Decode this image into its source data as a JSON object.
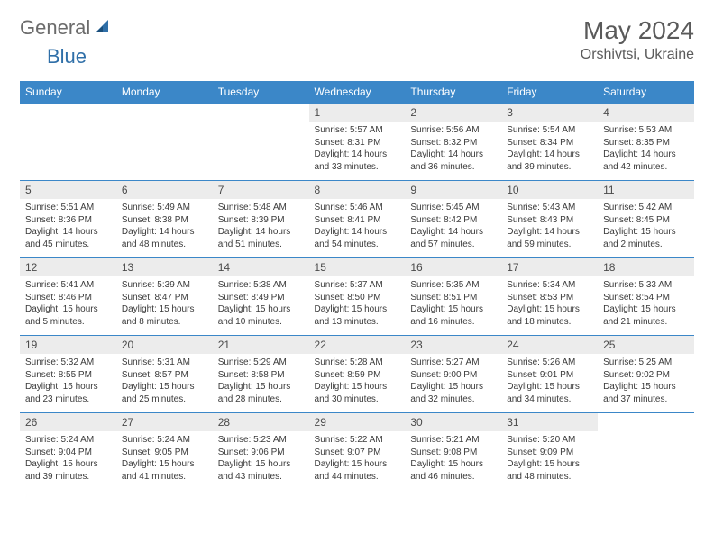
{
  "logo": {
    "part1": "General",
    "part2": "Blue"
  },
  "title": "May 2024",
  "location": "Orshivtsi, Ukraine",
  "colors": {
    "header_bg": "#3b87c8",
    "header_text": "#ffffff",
    "daynum_bg": "#ececec",
    "border": "#3b87c8",
    "body_text": "#3a3a3a",
    "logo_gray": "#6b6b6b",
    "logo_blue": "#2f6fa8"
  },
  "day_names": [
    "Sunday",
    "Monday",
    "Tuesday",
    "Wednesday",
    "Thursday",
    "Friday",
    "Saturday"
  ],
  "weeks": [
    [
      {
        "day": "",
        "text": ""
      },
      {
        "day": "",
        "text": ""
      },
      {
        "day": "",
        "text": ""
      },
      {
        "day": "1",
        "text": "Sunrise: 5:57 AM\nSunset: 8:31 PM\nDaylight: 14 hours and 33 minutes."
      },
      {
        "day": "2",
        "text": "Sunrise: 5:56 AM\nSunset: 8:32 PM\nDaylight: 14 hours and 36 minutes."
      },
      {
        "day": "3",
        "text": "Sunrise: 5:54 AM\nSunset: 8:34 PM\nDaylight: 14 hours and 39 minutes."
      },
      {
        "day": "4",
        "text": "Sunrise: 5:53 AM\nSunset: 8:35 PM\nDaylight: 14 hours and 42 minutes."
      }
    ],
    [
      {
        "day": "5",
        "text": "Sunrise: 5:51 AM\nSunset: 8:36 PM\nDaylight: 14 hours and 45 minutes."
      },
      {
        "day": "6",
        "text": "Sunrise: 5:49 AM\nSunset: 8:38 PM\nDaylight: 14 hours and 48 minutes."
      },
      {
        "day": "7",
        "text": "Sunrise: 5:48 AM\nSunset: 8:39 PM\nDaylight: 14 hours and 51 minutes."
      },
      {
        "day": "8",
        "text": "Sunrise: 5:46 AM\nSunset: 8:41 PM\nDaylight: 14 hours and 54 minutes."
      },
      {
        "day": "9",
        "text": "Sunrise: 5:45 AM\nSunset: 8:42 PM\nDaylight: 14 hours and 57 minutes."
      },
      {
        "day": "10",
        "text": "Sunrise: 5:43 AM\nSunset: 8:43 PM\nDaylight: 14 hours and 59 minutes."
      },
      {
        "day": "11",
        "text": "Sunrise: 5:42 AM\nSunset: 8:45 PM\nDaylight: 15 hours and 2 minutes."
      }
    ],
    [
      {
        "day": "12",
        "text": "Sunrise: 5:41 AM\nSunset: 8:46 PM\nDaylight: 15 hours and 5 minutes."
      },
      {
        "day": "13",
        "text": "Sunrise: 5:39 AM\nSunset: 8:47 PM\nDaylight: 15 hours and 8 minutes."
      },
      {
        "day": "14",
        "text": "Sunrise: 5:38 AM\nSunset: 8:49 PM\nDaylight: 15 hours and 10 minutes."
      },
      {
        "day": "15",
        "text": "Sunrise: 5:37 AM\nSunset: 8:50 PM\nDaylight: 15 hours and 13 minutes."
      },
      {
        "day": "16",
        "text": "Sunrise: 5:35 AM\nSunset: 8:51 PM\nDaylight: 15 hours and 16 minutes."
      },
      {
        "day": "17",
        "text": "Sunrise: 5:34 AM\nSunset: 8:53 PM\nDaylight: 15 hours and 18 minutes."
      },
      {
        "day": "18",
        "text": "Sunrise: 5:33 AM\nSunset: 8:54 PM\nDaylight: 15 hours and 21 minutes."
      }
    ],
    [
      {
        "day": "19",
        "text": "Sunrise: 5:32 AM\nSunset: 8:55 PM\nDaylight: 15 hours and 23 minutes."
      },
      {
        "day": "20",
        "text": "Sunrise: 5:31 AM\nSunset: 8:57 PM\nDaylight: 15 hours and 25 minutes."
      },
      {
        "day": "21",
        "text": "Sunrise: 5:29 AM\nSunset: 8:58 PM\nDaylight: 15 hours and 28 minutes."
      },
      {
        "day": "22",
        "text": "Sunrise: 5:28 AM\nSunset: 8:59 PM\nDaylight: 15 hours and 30 minutes."
      },
      {
        "day": "23",
        "text": "Sunrise: 5:27 AM\nSunset: 9:00 PM\nDaylight: 15 hours and 32 minutes."
      },
      {
        "day": "24",
        "text": "Sunrise: 5:26 AM\nSunset: 9:01 PM\nDaylight: 15 hours and 34 minutes."
      },
      {
        "day": "25",
        "text": "Sunrise: 5:25 AM\nSunset: 9:02 PM\nDaylight: 15 hours and 37 minutes."
      }
    ],
    [
      {
        "day": "26",
        "text": "Sunrise: 5:24 AM\nSunset: 9:04 PM\nDaylight: 15 hours and 39 minutes."
      },
      {
        "day": "27",
        "text": "Sunrise: 5:24 AM\nSunset: 9:05 PM\nDaylight: 15 hours and 41 minutes."
      },
      {
        "day": "28",
        "text": "Sunrise: 5:23 AM\nSunset: 9:06 PM\nDaylight: 15 hours and 43 minutes."
      },
      {
        "day": "29",
        "text": "Sunrise: 5:22 AM\nSunset: 9:07 PM\nDaylight: 15 hours and 44 minutes."
      },
      {
        "day": "30",
        "text": "Sunrise: 5:21 AM\nSunset: 9:08 PM\nDaylight: 15 hours and 46 minutes."
      },
      {
        "day": "31",
        "text": "Sunrise: 5:20 AM\nSunset: 9:09 PM\nDaylight: 15 hours and 48 minutes."
      },
      {
        "day": "",
        "text": ""
      }
    ]
  ]
}
